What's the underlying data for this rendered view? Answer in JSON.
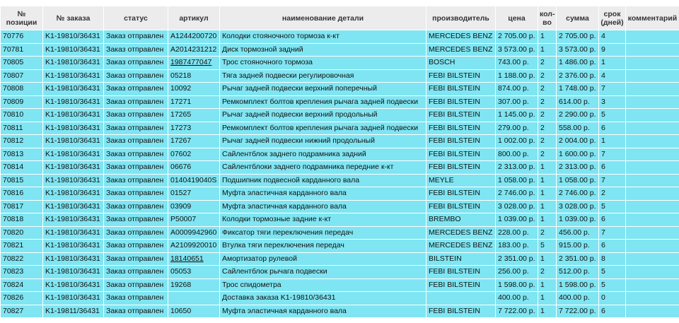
{
  "table": {
    "columns": [
      "№ позиции",
      "№ заказа",
      "статус",
      "артикул",
      "наименование детали",
      "производитель",
      "цена",
      "кол-во",
      "сумма",
      "срок (дней)",
      "комментарий"
    ],
    "rows": [
      [
        "70776",
        "K1-19810/36431",
        "Заказ отправлен",
        "A1244200720",
        "Колодки стояночного тормоза к-кт",
        "MERCEDES BENZ",
        "2 705.00 р.",
        "1",
        "2 705.00 р.",
        "4",
        null
      ],
      [
        "70781",
        "K1-19810/36431",
        "Заказ отправлен",
        "A2014231212",
        "Диск тормозной задний",
        "MERCEDES BENZ",
        "3 573.00 р.",
        "1",
        "3 573.00 р.",
        "9",
        null
      ],
      [
        "70805",
        "K1-19810/36431",
        "Заказ отправлен",
        {
          "text": "1987477047",
          "underline": true
        },
        "Трос стояночного тормоза",
        "BOSCH",
        "743.00 р.",
        "2",
        "1 486.00 р.",
        "1",
        null
      ],
      [
        "70807",
        "K1-19810/36431",
        "Заказ отправлен",
        "05218",
        "Тяга задней подвески регулировочная",
        "FEBI BILSTEIN",
        "1 188.00 р.",
        "2",
        "2 376.00 р.",
        "4",
        null
      ],
      [
        "70808",
        "K1-19810/36431",
        "Заказ отправлен",
        "10092",
        "Рычаг задней подвески верхний поперечный",
        "FEBI BILSTEIN",
        "874.00 р.",
        "2",
        "1 748.00 р.",
        "7",
        null
      ],
      [
        "70809",
        "K1-19810/36431",
        "Заказ отправлен",
        "17271",
        "Ремкомплект болтов крепления рычага задней подвески",
        "FEBI BILSTEIN",
        "307.00 р.",
        "2",
        "614.00 р.",
        "3",
        null
      ],
      [
        "70810",
        "K1-19810/36431",
        "Заказ отправлен",
        "17265",
        "Рычаг задней подвески верхний продольный",
        "FEBI BILSTEIN",
        "1 145.00 р.",
        "2",
        "2 290.00 р.",
        "5",
        null
      ],
      [
        "70811",
        "K1-19810/36431",
        "Заказ отправлен",
        "17273",
        "Ремкомплект болтов крепления рычага задней подвески",
        "FEBI BILSTEIN",
        "279.00 р.",
        "2",
        "558.00 р.",
        "6",
        null
      ],
      [
        "70812",
        "K1-19810/36431",
        "Заказ отправлен",
        "17267",
        "Рычаг задней подвески нижний продольный",
        "FEBI BILSTEIN",
        "1 002.00 р.",
        "2",
        "2 004.00 р.",
        "1",
        null
      ],
      [
        "70813",
        "K1-19810/36431",
        "Заказ отправлен",
        "07602",
        "Сайлентблок заднего подрамника задний",
        "FEBI BILSTEIN",
        "800.00 р.",
        "2",
        "1 600.00 р.",
        "7",
        null
      ],
      [
        "70814",
        "K1-19810/36431",
        "Заказ отправлен",
        "06676",
        "Сайлентблоки заднего подрамника передние к-кт",
        "FEBI BILSTEIN",
        "2 313.00 р.",
        "1",
        "2 313.00 р.",
        "6",
        null
      ],
      [
        "70815",
        "K1-19810/36431",
        "Заказ отправлен",
        "0140419040S",
        "Подшипник подвесной карданного вала",
        "MEYLE",
        "1 058.00 р.",
        "1",
        "1 058.00 р.",
        "7",
        null
      ],
      [
        "70816",
        "K1-19810/36431",
        "Заказ отправлен",
        "01527",
        "Муфта эластичная карданного вала",
        "FEBI BILSTEIN",
        "2 746.00 р.",
        "1",
        "2 746.00 р.",
        "2",
        null
      ],
      [
        "70817",
        "K1-19810/36431",
        "Заказ отправлен",
        "03909",
        "Муфта эластичная карданного вала",
        "FEBI BILSTEIN",
        "3 028.00 р.",
        "1",
        "3 028.00 р.",
        "5",
        null
      ],
      [
        "70818",
        "K1-19810/36431",
        "Заказ отправлен",
        "P50007",
        "Колодки тормозные задние к-кт",
        "BREMBO",
        "1 039.00 р.",
        "1",
        "1 039.00 р.",
        "6",
        null
      ],
      [
        "70820",
        "K1-19810/36431",
        "Заказ отправлен",
        "A0009942960",
        "Фиксатор тяги переключения передач",
        "MERCEDES BENZ",
        "228.00 р.",
        "2",
        "456.00 р.",
        "7",
        null
      ],
      [
        "70821",
        "K1-19810/36431",
        "Заказ отправлен",
        "A2109920010",
        "Втулка тяги переключения передач",
        "MERCEDES BENZ",
        "183.00 р.",
        "5",
        "915.00 р.",
        "6",
        null
      ],
      [
        "70822",
        "K1-19810/36431",
        "Заказ отправлен",
        {
          "text": "18140651",
          "underline": true
        },
        "Амортизатор рулевой",
        "BILSTEIN",
        "2 351.00 р.",
        "1",
        "2 351.00 р.",
        "8",
        null
      ],
      [
        "70823",
        "K1-19810/36431",
        "Заказ отправлен",
        "05053",
        "Сайлентблок рычага подвески",
        "FEBI BILSTEIN",
        "256.00 р.",
        "2",
        "512.00 р.",
        "5",
        null
      ],
      [
        "70824",
        "K1-19810/36431",
        "Заказ отправлен",
        "19268",
        "Трос спидометра",
        "FEBI BILSTEIN",
        "1 598.00 р.",
        "1",
        "1 598.00 р.",
        "5",
        null
      ],
      [
        "70826",
        "K1-19810/36431",
        "Заказ отправлен",
        null,
        "Доставка заказа K1-19810/36431",
        null,
        "400.00 р.",
        "1",
        "400.00 р.",
        "0",
        null
      ],
      [
        "70827",
        "K1-19811/36431",
        "Заказ отправлен",
        "10650",
        "Муфта эластичная карданного вала",
        "FEBI BILSTEIN",
        "7 722.00 р.",
        "1",
        "7 722.00 р.",
        "6",
        null
      ]
    ]
  }
}
